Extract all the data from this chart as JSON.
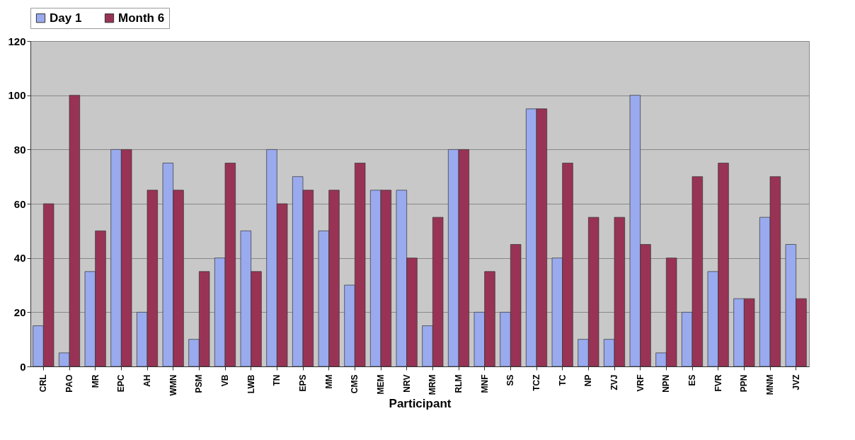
{
  "chart_data": {
    "type": "bar",
    "xlabel": "Participant",
    "categories": [
      "CRL",
      "PAO",
      "MR",
      "EPC",
      "AH",
      "WMN",
      "PSM",
      "VB",
      "LWB",
      "TN",
      "EPS",
      "MM",
      "CMS",
      "MEM",
      "NRV",
      "MRM",
      "RLM",
      "MNF",
      "SS",
      "TCZ",
      "TC",
      "NP",
      "ZVJ",
      "VRF",
      "NPN",
      "ES",
      "FVR",
      "PPN",
      "MNM",
      "JVZ"
    ],
    "series": [
      {
        "name": "Day 1",
        "color": "#99aaee",
        "values": [
          15,
          5,
          35,
          80,
          20,
          75,
          10,
          40,
          50,
          80,
          70,
          50,
          30,
          65,
          65,
          15,
          80,
          20,
          20,
          95,
          40,
          10,
          10,
          100,
          5,
          20,
          35,
          25,
          55,
          45
        ]
      },
      {
        "name": "Month 6",
        "color": "#993355",
        "values": [
          60,
          100,
          50,
          80,
          65,
          65,
          35,
          75,
          35,
          60,
          65,
          65,
          75,
          65,
          40,
          55,
          80,
          35,
          45,
          95,
          75,
          55,
          55,
          45,
          40,
          70,
          75,
          25,
          70,
          25
        ]
      }
    ],
    "ylim": [
      0,
      120
    ],
    "yticks": [
      0,
      20,
      40,
      60,
      80,
      100,
      120
    ],
    "grid": "y",
    "legend": "top"
  }
}
